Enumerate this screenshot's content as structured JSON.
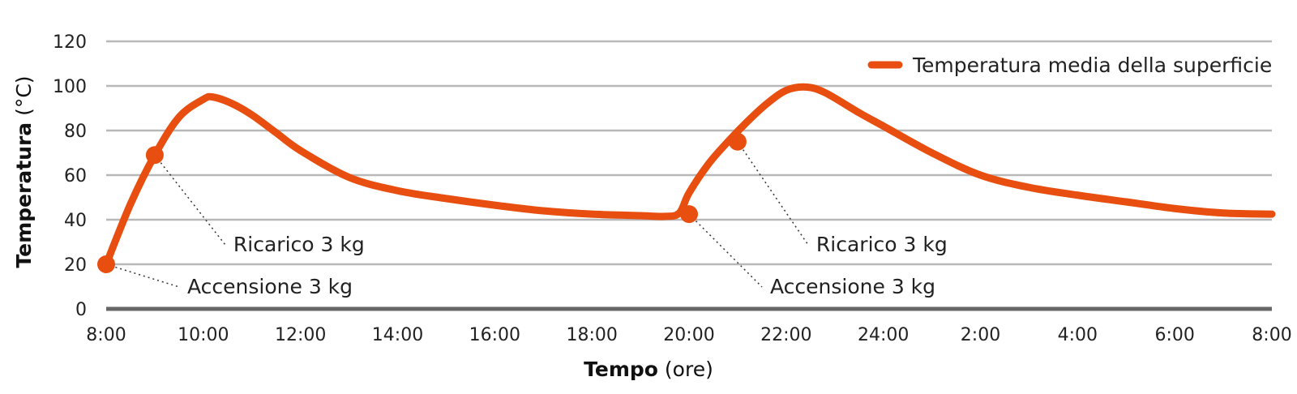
{
  "colors": {
    "series": "#e84e0f",
    "grid": "#b8b8b8",
    "baseline": "#666666",
    "text": "#222222"
  },
  "chart_data": {
    "type": "line",
    "title": "",
    "xlabel": {
      "bold": "Tempo",
      "regular": " (ore)"
    },
    "ylabel": {
      "bold": "Temperatura",
      "regular": " (°C)"
    },
    "ylim": [
      0,
      120
    ],
    "y_ticks": [
      0,
      20,
      40,
      60,
      80,
      100,
      120
    ],
    "x_ticks": [
      "8:00",
      "10:00",
      "12:00",
      "14:00",
      "16:00",
      "18:00",
      "20:00",
      "22:00",
      "24:00",
      "2:00",
      "4:00",
      "6:00",
      "8:00"
    ],
    "x_range": [
      0,
      24
    ],
    "grid": true,
    "legend_position": "top-right",
    "series": [
      {
        "name": "Temperatura media della superficie",
        "x": [
          0,
          0.5,
          1,
          1.5,
          2,
          2.2,
          2.6,
          3,
          3.5,
          4,
          5,
          6,
          7,
          8,
          9,
          10,
          11,
          11.5,
          11.8,
          12,
          12.4,
          12.8,
          13.2,
          13.6,
          14,
          14.4,
          14.8,
          15.5,
          16,
          17,
          18,
          19,
          20,
          21,
          22,
          23,
          24
        ],
        "y": [
          20,
          47,
          69,
          86,
          94,
          95,
          92,
          87,
          79,
          71,
          59,
          53,
          49.5,
          46.5,
          44,
          42.5,
          41.8,
          41.5,
          43,
          52,
          65,
          75,
          84,
          92,
          98,
          99.5,
          97,
          88,
          82,
          70,
          60,
          54.5,
          51,
          48,
          45,
          43,
          42.5
        ]
      }
    ],
    "markers": [
      {
        "x": 0,
        "y": 20
      },
      {
        "x": 1,
        "y": 69
      },
      {
        "x": 12,
        "y": 42.5
      },
      {
        "x": 13,
        "y": 75
      }
    ],
    "annotations": [
      {
        "text": "Accensione 3 kg",
        "x": 0,
        "y": 20
      },
      {
        "text": "Ricarico 3 kg",
        "x": 1,
        "y": 69
      },
      {
        "text": "Accensione 3 kg",
        "x": 12,
        "y": 42.5
      },
      {
        "text": "Ricarico 3 kg",
        "x": 13,
        "y": 75
      }
    ]
  }
}
